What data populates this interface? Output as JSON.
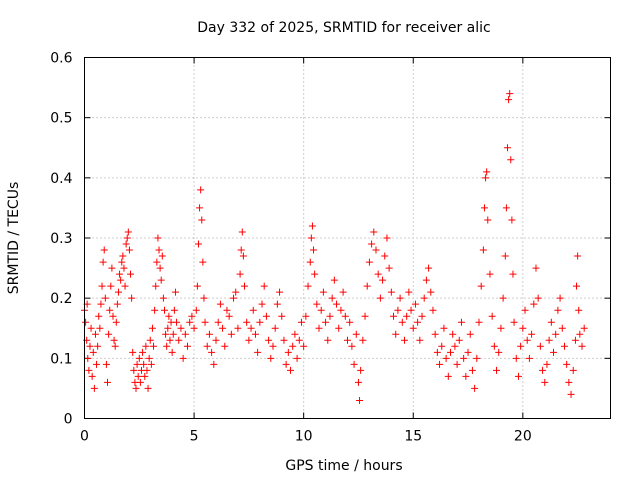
{
  "chart_data": {
    "type": "scatter",
    "title": "Day 332 of 2025, SRMTID for receiver alic",
    "xlabel": "GPS time / hours",
    "ylabel": "SRMTID / TECUs",
    "xlim": [
      0,
      24
    ],
    "ylim": [
      0,
      0.6
    ],
    "x_ticks": [
      0,
      5,
      10,
      15,
      20
    ],
    "x_tick_labels": [
      "0",
      "5",
      "10",
      "15",
      "20"
    ],
    "y_ticks": [
      0,
      0.1,
      0.2,
      0.3,
      0.4,
      0.5,
      0.6
    ],
    "y_tick_labels": [
      "0",
      "0.1",
      "0.2",
      "0.3",
      "0.4",
      "0.5",
      "0.6"
    ],
    "grid": true,
    "marker": "plus",
    "color": "#ff0000",
    "series": [
      {
        "name": "SRMTID",
        "points": [
          [
            0.0,
            0.18
          ],
          [
            0.05,
            0.16
          ],
          [
            0.1,
            0.13
          ],
          [
            0.12,
            0.19
          ],
          [
            0.15,
            0.1
          ],
          [
            0.2,
            0.08
          ],
          [
            0.25,
            0.12
          ],
          [
            0.3,
            0.15
          ],
          [
            0.35,
            0.07
          ],
          [
            0.4,
            0.11
          ],
          [
            0.45,
            0.05
          ],
          [
            0.5,
            0.14
          ],
          [
            0.55,
            0.09
          ],
          [
            0.6,
            0.12
          ],
          [
            0.65,
            0.17
          ],
          [
            0.7,
            0.15
          ],
          [
            0.75,
            0.19
          ],
          [
            0.8,
            0.22
          ],
          [
            0.85,
            0.26
          ],
          [
            0.9,
            0.28
          ],
          [
            0.95,
            0.2
          ],
          [
            1.0,
            0.09
          ],
          [
            1.05,
            0.06
          ],
          [
            1.1,
            0.14
          ],
          [
            1.15,
            0.18
          ],
          [
            1.2,
            0.22
          ],
          [
            1.25,
            0.25
          ],
          [
            1.3,
            0.17
          ],
          [
            1.35,
            0.13
          ],
          [
            1.4,
            0.12
          ],
          [
            1.45,
            0.16
          ],
          [
            1.5,
            0.19
          ],
          [
            1.55,
            0.21
          ],
          [
            1.6,
            0.24
          ],
          [
            1.65,
            0.23
          ],
          [
            1.7,
            0.26
          ],
          [
            1.75,
            0.27
          ],
          [
            1.8,
            0.25
          ],
          [
            1.85,
            0.22
          ],
          [
            1.9,
            0.29
          ],
          [
            1.95,
            0.3
          ],
          [
            2.0,
            0.31
          ],
          [
            2.05,
            0.28
          ],
          [
            2.1,
            0.24
          ],
          [
            2.15,
            0.2
          ],
          [
            2.2,
            0.11
          ],
          [
            2.25,
            0.08
          ],
          [
            2.3,
            0.06
          ],
          [
            2.35,
            0.05
          ],
          [
            2.4,
            0.09
          ],
          [
            2.45,
            0.07
          ],
          [
            2.5,
            0.1
          ],
          [
            2.55,
            0.06
          ],
          [
            2.6,
            0.08
          ],
          [
            2.65,
            0.11
          ],
          [
            2.7,
            0.09
          ],
          [
            2.75,
            0.07
          ],
          [
            2.8,
            0.12
          ],
          [
            2.85,
            0.08
          ],
          [
            2.9,
            0.05
          ],
          [
            2.95,
            0.1
          ],
          [
            3.0,
            0.13
          ],
          [
            3.05,
            0.09
          ],
          [
            3.1,
            0.15
          ],
          [
            3.15,
            0.12
          ],
          [
            3.2,
            0.18
          ],
          [
            3.25,
            0.22
          ],
          [
            3.3,
            0.26
          ],
          [
            3.35,
            0.3
          ],
          [
            3.4,
            0.28
          ],
          [
            3.45,
            0.25
          ],
          [
            3.5,
            0.23
          ],
          [
            3.55,
            0.27
          ],
          [
            3.6,
            0.2
          ],
          [
            3.65,
            0.18
          ],
          [
            3.7,
            0.14
          ],
          [
            3.75,
            0.12
          ],
          [
            3.8,
            0.15
          ],
          [
            3.85,
            0.17
          ],
          [
            3.9,
            0.13
          ],
          [
            3.95,
            0.16
          ],
          [
            4.0,
            0.11
          ],
          [
            4.05,
            0.14
          ],
          [
            4.1,
            0.18
          ],
          [
            4.15,
            0.21
          ],
          [
            4.2,
            0.16
          ],
          [
            4.3,
            0.13
          ],
          [
            4.4,
            0.15
          ],
          [
            4.5,
            0.1
          ],
          [
            4.6,
            0.14
          ],
          [
            4.7,
            0.12
          ],
          [
            4.8,
            0.16
          ],
          [
            4.9,
            0.17
          ],
          [
            5.0,
            0.15
          ],
          [
            5.1,
            0.18
          ],
          [
            5.15,
            0.22
          ],
          [
            5.2,
            0.29
          ],
          [
            5.25,
            0.35
          ],
          [
            5.3,
            0.38
          ],
          [
            5.35,
            0.33
          ],
          [
            5.4,
            0.26
          ],
          [
            5.45,
            0.2
          ],
          [
            5.5,
            0.16
          ],
          [
            5.6,
            0.12
          ],
          [
            5.7,
            0.14
          ],
          [
            5.8,
            0.11
          ],
          [
            5.9,
            0.09
          ],
          [
            6.0,
            0.13
          ],
          [
            6.1,
            0.16
          ],
          [
            6.2,
            0.19
          ],
          [
            6.3,
            0.15
          ],
          [
            6.4,
            0.12
          ],
          [
            6.5,
            0.18
          ],
          [
            6.6,
            0.17
          ],
          [
            6.7,
            0.14
          ],
          [
            6.8,
            0.2
          ],
          [
            6.9,
            0.21
          ],
          [
            7.0,
            0.15
          ],
          [
            7.1,
            0.24
          ],
          [
            7.15,
            0.28
          ],
          [
            7.2,
            0.31
          ],
          [
            7.25,
            0.27
          ],
          [
            7.3,
            0.22
          ],
          [
            7.4,
            0.16
          ],
          [
            7.5,
            0.13
          ],
          [
            7.6,
            0.15
          ],
          [
            7.7,
            0.18
          ],
          [
            7.8,
            0.14
          ],
          [
            7.9,
            0.11
          ],
          [
            8.0,
            0.16
          ],
          [
            8.1,
            0.19
          ],
          [
            8.2,
            0.22
          ],
          [
            8.3,
            0.17
          ],
          [
            8.4,
            0.13
          ],
          [
            8.5,
            0.1
          ],
          [
            8.6,
            0.12
          ],
          [
            8.7,
            0.15
          ],
          [
            8.8,
            0.19
          ],
          [
            8.9,
            0.21
          ],
          [
            9.0,
            0.17
          ],
          [
            9.1,
            0.13
          ],
          [
            9.2,
            0.09
          ],
          [
            9.3,
            0.11
          ],
          [
            9.4,
            0.08
          ],
          [
            9.5,
            0.12
          ],
          [
            9.6,
            0.14
          ],
          [
            9.7,
            0.1
          ],
          [
            9.8,
            0.13
          ],
          [
            9.9,
            0.16
          ],
          [
            10.0,
            0.12
          ],
          [
            10.1,
            0.17
          ],
          [
            10.2,
            0.22
          ],
          [
            10.3,
            0.26
          ],
          [
            10.35,
            0.3
          ],
          [
            10.4,
            0.32
          ],
          [
            10.45,
            0.28
          ],
          [
            10.5,
            0.24
          ],
          [
            10.6,
            0.19
          ],
          [
            10.7,
            0.15
          ],
          [
            10.8,
            0.18
          ],
          [
            10.9,
            0.21
          ],
          [
            11.0,
            0.16
          ],
          [
            11.1,
            0.13
          ],
          [
            11.2,
            0.17
          ],
          [
            11.3,
            0.2
          ],
          [
            11.4,
            0.23
          ],
          [
            11.5,
            0.19
          ],
          [
            11.6,
            0.15
          ],
          [
            11.7,
            0.18
          ],
          [
            11.8,
            0.21
          ],
          [
            11.9,
            0.17
          ],
          [
            12.0,
            0.13
          ],
          [
            12.1,
            0.16
          ],
          [
            12.2,
            0.12
          ],
          [
            12.3,
            0.09
          ],
          [
            12.4,
            0.14
          ],
          [
            12.5,
            0.06
          ],
          [
            12.55,
            0.03
          ],
          [
            12.6,
            0.08
          ],
          [
            12.7,
            0.13
          ],
          [
            12.8,
            0.17
          ],
          [
            12.9,
            0.22
          ],
          [
            13.0,
            0.26
          ],
          [
            13.1,
            0.29
          ],
          [
            13.2,
            0.31
          ],
          [
            13.3,
            0.28
          ],
          [
            13.4,
            0.24
          ],
          [
            13.5,
            0.2
          ],
          [
            13.6,
            0.23
          ],
          [
            13.7,
            0.27
          ],
          [
            13.8,
            0.3
          ],
          [
            13.9,
            0.25
          ],
          [
            14.0,
            0.21
          ],
          [
            14.1,
            0.17
          ],
          [
            14.2,
            0.14
          ],
          [
            14.3,
            0.18
          ],
          [
            14.4,
            0.2
          ],
          [
            14.5,
            0.16
          ],
          [
            14.6,
            0.13
          ],
          [
            14.7,
            0.17
          ],
          [
            14.8,
            0.21
          ],
          [
            14.9,
            0.18
          ],
          [
            15.0,
            0.15
          ],
          [
            15.1,
            0.19
          ],
          [
            15.2,
            0.16
          ],
          [
            15.3,
            0.13
          ],
          [
            15.4,
            0.17
          ],
          [
            15.5,
            0.2
          ],
          [
            15.6,
            0.23
          ],
          [
            15.7,
            0.25
          ],
          [
            15.8,
            0.21
          ],
          [
            15.9,
            0.18
          ],
          [
            16.0,
            0.14
          ],
          [
            16.1,
            0.11
          ],
          [
            16.2,
            0.09
          ],
          [
            16.3,
            0.12
          ],
          [
            16.4,
            0.15
          ],
          [
            16.5,
            0.1
          ],
          [
            16.6,
            0.07
          ],
          [
            16.7,
            0.11
          ],
          [
            16.8,
            0.14
          ],
          [
            16.9,
            0.12
          ],
          [
            17.0,
            0.09
          ],
          [
            17.1,
            0.13
          ],
          [
            17.2,
            0.16
          ],
          [
            17.3,
            0.1
          ],
          [
            17.4,
            0.07
          ],
          [
            17.5,
            0.11
          ],
          [
            17.6,
            0.14
          ],
          [
            17.7,
            0.08
          ],
          [
            17.8,
            0.05
          ],
          [
            17.9,
            0.1
          ],
          [
            18.0,
            0.16
          ],
          [
            18.1,
            0.22
          ],
          [
            18.2,
            0.28
          ],
          [
            18.25,
            0.35
          ],
          [
            18.3,
            0.4
          ],
          [
            18.35,
            0.41
          ],
          [
            18.4,
            0.33
          ],
          [
            18.5,
            0.24
          ],
          [
            18.6,
            0.17
          ],
          [
            18.7,
            0.12
          ],
          [
            18.8,
            0.08
          ],
          [
            18.9,
            0.11
          ],
          [
            19.0,
            0.15
          ],
          [
            19.1,
            0.2
          ],
          [
            19.2,
            0.27
          ],
          [
            19.25,
            0.35
          ],
          [
            19.3,
            0.45
          ],
          [
            19.35,
            0.53
          ],
          [
            19.4,
            0.54
          ],
          [
            19.45,
            0.43
          ],
          [
            19.5,
            0.33
          ],
          [
            19.55,
            0.24
          ],
          [
            19.6,
            0.16
          ],
          [
            19.7,
            0.1
          ],
          [
            19.8,
            0.07
          ],
          [
            19.9,
            0.12
          ],
          [
            20.0,
            0.15
          ],
          [
            20.1,
            0.18
          ],
          [
            20.2,
            0.13
          ],
          [
            20.3,
            0.1
          ],
          [
            20.4,
            0.14
          ],
          [
            20.5,
            0.19
          ],
          [
            20.6,
            0.25
          ],
          [
            20.7,
            0.2
          ],
          [
            20.8,
            0.12
          ],
          [
            20.9,
            0.08
          ],
          [
            21.0,
            0.06
          ],
          [
            21.1,
            0.09
          ],
          [
            21.2,
            0.13
          ],
          [
            21.3,
            0.16
          ],
          [
            21.4,
            0.11
          ],
          [
            21.5,
            0.14
          ],
          [
            21.6,
            0.18
          ],
          [
            21.7,
            0.2
          ],
          [
            21.8,
            0.15
          ],
          [
            21.9,
            0.12
          ],
          [
            22.0,
            0.09
          ],
          [
            22.1,
            0.06
          ],
          [
            22.2,
            0.04
          ],
          [
            22.3,
            0.08
          ],
          [
            22.4,
            0.13
          ],
          [
            22.45,
            0.22
          ],
          [
            22.5,
            0.27
          ],
          [
            22.55,
            0.18
          ],
          [
            22.6,
            0.14
          ],
          [
            22.7,
            0.12
          ],
          [
            22.8,
            0.15
          ]
        ]
      }
    ]
  }
}
